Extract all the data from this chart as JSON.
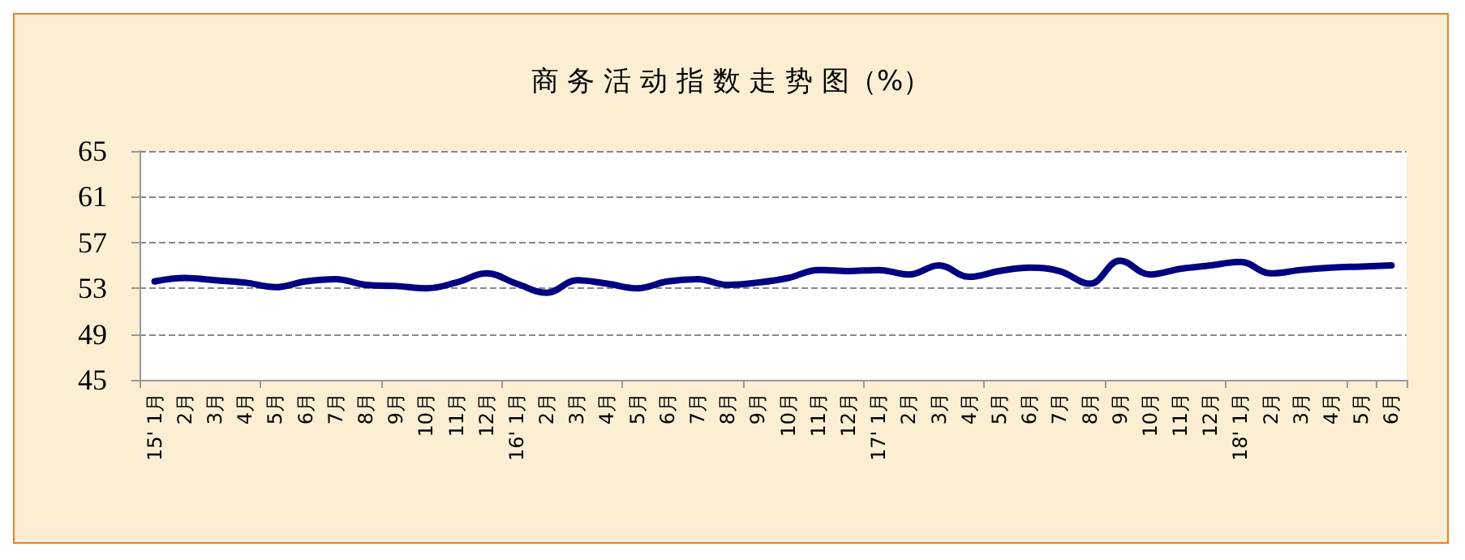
{
  "chart_data": {
    "type": "line",
    "title": "商 务 活 动 指 数 走 势 图（%）",
    "categories": [
      "15' 1月",
      "2月",
      "3月",
      "4月",
      "5月",
      "6月",
      "7月",
      "8月",
      "9月",
      "10月",
      "11月",
      "12月",
      "16' 1月",
      "2月",
      "3月",
      "4月",
      "5月",
      "6月",
      "7月",
      "8月",
      "9月",
      "10月",
      "11月",
      "12月",
      "17' 1月",
      "2月",
      "3月",
      "4月",
      "5月",
      "6月",
      "7月",
      "8月",
      "9月",
      "10月",
      "11月",
      "12月",
      "18' 1月",
      "2月",
      "3月",
      "4月",
      "5月",
      "6月"
    ],
    "series": [
      {
        "color": "#000080",
        "values": [
          53.6,
          53.9,
          53.7,
          53.5,
          53.1,
          53.6,
          53.8,
          53.3,
          53.2,
          53.0,
          53.5,
          54.3,
          53.4,
          52.6,
          53.7,
          53.4,
          53.0,
          53.6,
          53.8,
          53.3,
          53.5,
          53.9,
          54.6,
          54.5,
          54.6,
          54.2,
          55.0,
          54.0,
          54.5,
          54.8,
          54.5,
          53.4,
          55.4,
          54.2,
          54.7,
          55.0,
          55.3,
          54.3,
          54.6,
          54.8,
          54.9,
          55.0
        ]
      }
    ],
    "ylim": [
      45,
      65
    ],
    "yticks": [
      45,
      49,
      53,
      57,
      61,
      65
    ],
    "grid": "y",
    "marker": "none",
    "line_style": "solid"
  }
}
